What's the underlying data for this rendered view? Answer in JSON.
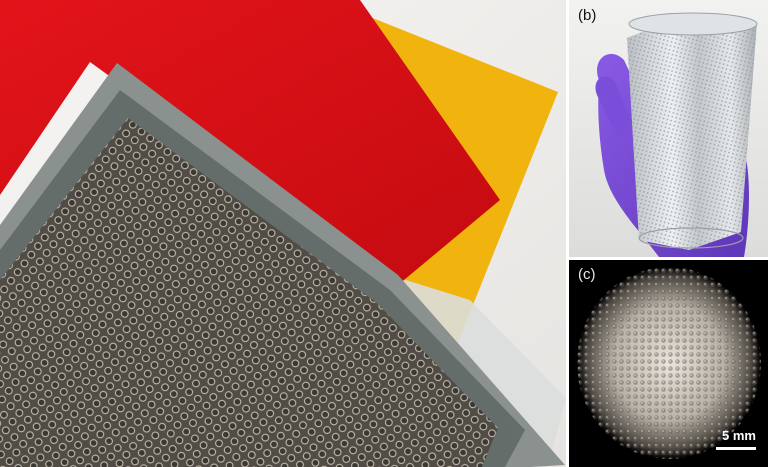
{
  "panels": {
    "b": {
      "label": "(b)"
    },
    "c": {
      "label": "(c)",
      "scale_label": "5 mm"
    }
  },
  "colors": {
    "background": "#f2f0ee",
    "red_sheet": "#d90f14",
    "yellow_sheet": "#f2b20f",
    "metal_frame": "#6b7370",
    "mesh_fill": "#4a4740",
    "glove": "#7a4fd8",
    "film": "#d4d8dc"
  },
  "icons": {
    "perforated-plate": "perforated-metal-plate-photo",
    "rolled-film": "rolled-perforated-film-in-gloved-hand-photo",
    "micrograph": "microlens-array-micrograph-photo"
  }
}
